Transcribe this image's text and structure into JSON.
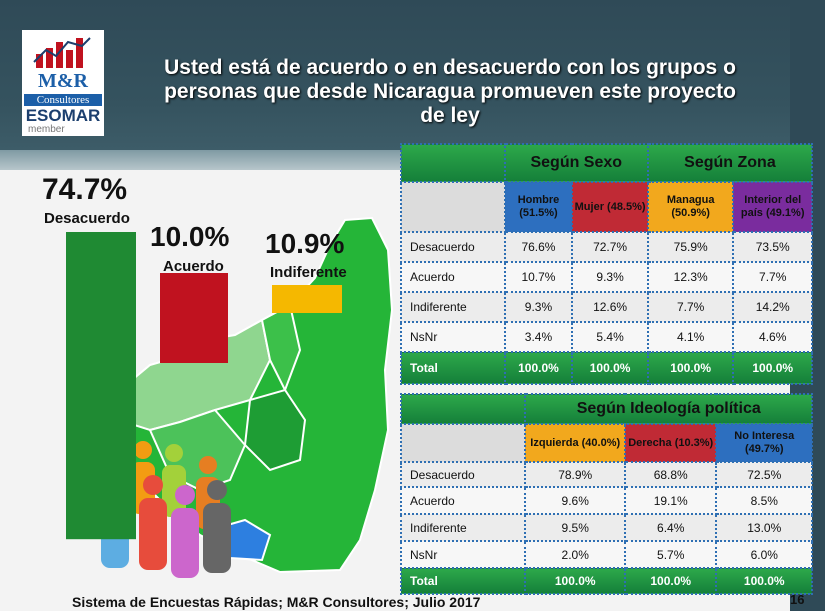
{
  "logo": {
    "mr": "M&R",
    "consultores": "Consultores",
    "esomar": "ESOMAR",
    "member": "member"
  },
  "title": "Usted está de acuerdo o en desacuerdo con los grupos o personas que desde Nicaragua promueven este proyecto de ley",
  "chart_data": [
    {
      "type": "bar",
      "categories": [
        "Desacuerdo",
        "Acuerdo",
        "Indiferente"
      ],
      "values": [
        74.7,
        10.0,
        10.9
      ],
      "value_labels": [
        "74.7%",
        "10.0%",
        "10.9%"
      ],
      "colors": [
        "#1f8a33",
        "#c0121f",
        "#f5b800"
      ]
    },
    {
      "type": "table",
      "group_headers": [
        "Según Sexo",
        "Según Zona"
      ],
      "columns": [
        {
          "label": "Hombre (51.5%)",
          "color": "#2d6fbf"
        },
        {
          "label": "Mujer (48.5%)",
          "color": "#c02a35"
        },
        {
          "label": "Managua (50.9%)",
          "color": "#f2a81d"
        },
        {
          "label": "Interior del país (49.1%)",
          "color": "#7a2c9e"
        }
      ],
      "rows": [
        {
          "label": "Desacuerdo",
          "values": [
            "76.6%",
            "72.7%",
            "75.9%",
            "73.5%"
          ]
        },
        {
          "label": "Acuerdo",
          "values": [
            "10.7%",
            "9.3%",
            "12.3%",
            "7.7%"
          ]
        },
        {
          "label": "Indiferente",
          "values": [
            "9.3%",
            "12.6%",
            "7.7%",
            "14.2%"
          ]
        },
        {
          "label": "NsNr",
          "values": [
            "3.4%",
            "5.4%",
            "4.1%",
            "4.6%"
          ]
        },
        {
          "label": "Total",
          "values": [
            "100.0%",
            "100.0%",
            "100.0%",
            "100.0%"
          ]
        }
      ]
    },
    {
      "type": "table",
      "group_headers": [
        "Según Ideología política"
      ],
      "columns": [
        {
          "label": "Izquierda (40.0%)",
          "color": "#f2a81d"
        },
        {
          "label": "Derecha (10.3%)",
          "color": "#c02a35"
        },
        {
          "label": "No Interesa (49.7%)",
          "color": "#2d6fbf"
        }
      ],
      "rows": [
        {
          "label": "Desacuerdo",
          "values": [
            "78.9%",
            "68.8%",
            "72.5%"
          ]
        },
        {
          "label": "Acuerdo",
          "values": [
            "9.6%",
            "19.1%",
            "8.5%"
          ]
        },
        {
          "label": "Indiferente",
          "values": [
            "9.5%",
            "6.4%",
            "13.0%"
          ]
        },
        {
          "label": "NsNr",
          "values": [
            "2.0%",
            "5.7%",
            "6.0%"
          ]
        },
        {
          "label": "Total",
          "values": [
            "100.0%",
            "100.0%",
            "100.0%"
          ]
        }
      ]
    }
  ],
  "footer": "Sistema de Encuestas Rápidas; M&R Consultores; Julio 2017",
  "page_number": "16"
}
